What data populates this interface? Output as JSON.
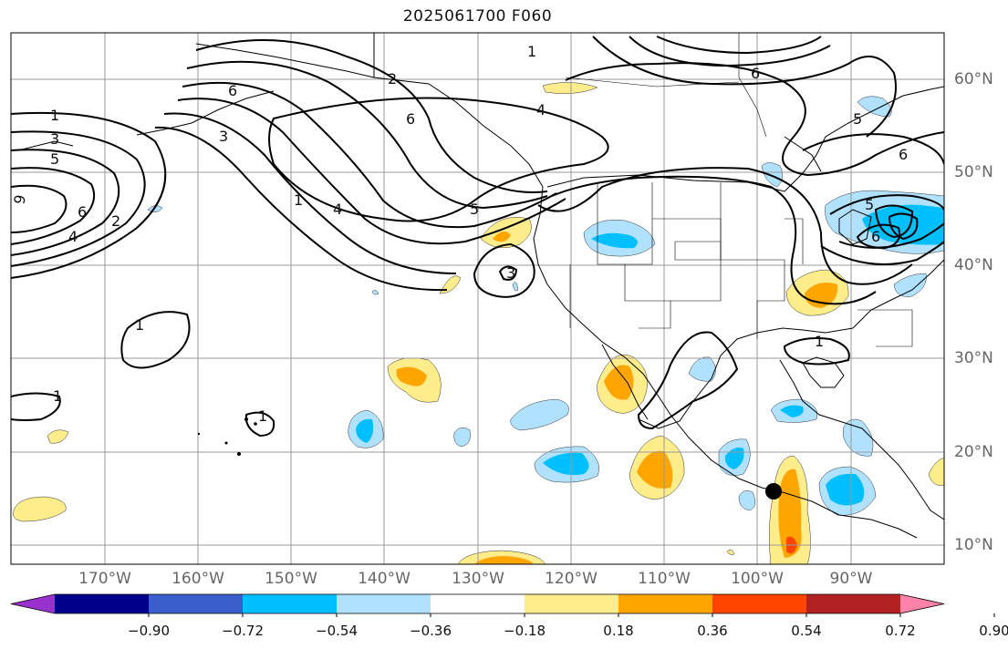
{
  "title": "2025061700 F060",
  "map": {
    "projection": "cylindrical",
    "extent": {
      "lon_min": -180,
      "lon_max": -80,
      "lat_min": 8,
      "lat_max": 65
    },
    "lon_labels": [
      {
        "lon": -170,
        "text": "170°W"
      },
      {
        "lon": -160,
        "text": "160°W"
      },
      {
        "lon": -150,
        "text": "150°W"
      },
      {
        "lon": -140,
        "text": "140°W"
      },
      {
        "lon": -130,
        "text": "130°W"
      },
      {
        "lon": -120,
        "text": "120°W"
      },
      {
        "lon": -110,
        "text": "110°W"
      },
      {
        "lon": -100,
        "text": "100°W"
      },
      {
        "lon": -90,
        "text": "90°W"
      }
    ],
    "lat_labels": [
      {
        "lat": 60,
        "text": "60°N"
      },
      {
        "lat": 50,
        "text": "50°N"
      },
      {
        "lat": 40,
        "text": "40°N"
      },
      {
        "lat": 30,
        "text": "30°N"
      },
      {
        "lat": 20,
        "text": "20°N"
      },
      {
        "lat": 10,
        "text": "10°N"
      }
    ],
    "marker": {
      "lon": -98,
      "lat": 16,
      "color": "#000000"
    },
    "contour_labels": [
      "1",
      "2",
      "3",
      "4",
      "5",
      "6"
    ]
  },
  "colorbar": {
    "colors": [
      "#9932cc",
      "#00008b",
      "#3a5fcd",
      "#00bfff",
      "#b0e2ff",
      "#ffffff",
      "#ffec8b",
      "#ffa500",
      "#ff4500",
      "#b22222",
      "#ff83a8"
    ],
    "ticks": [
      "−0.90",
      "−0.72",
      "−0.54",
      "−0.36",
      "−0.18",
      "0.18",
      "0.36",
      "0.54",
      "0.72",
      "0.90"
    ]
  }
}
